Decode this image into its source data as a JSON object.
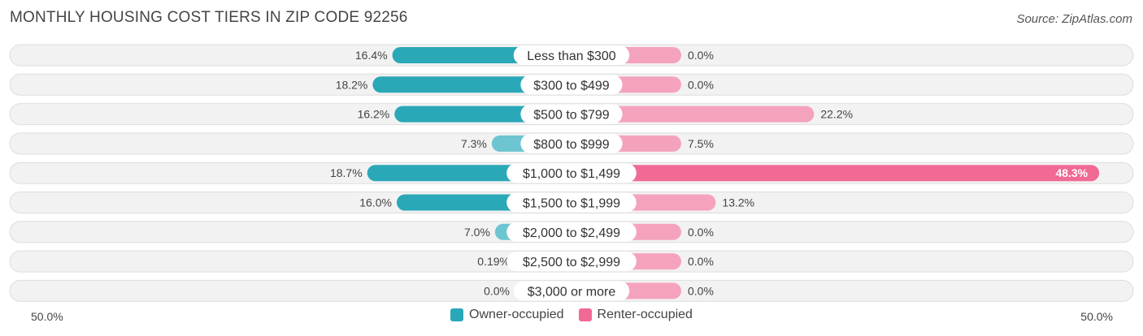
{
  "title": "MONTHLY HOUSING COST TIERS IN ZIP CODE 92256",
  "source": "Source: ZipAtlas.com",
  "colors": {
    "owner": "#2BA8B8",
    "owner_light": "#6CC5D0",
    "renter": "#F06A94",
    "renter_light": "#F5A3BD"
  },
  "chart_data": {
    "type": "bar",
    "orientation": "horizontal-diverging",
    "categories": [
      "Less than $300",
      "$300 to $499",
      "$500 to $799",
      "$800 to $999",
      "$1,000 to $1,499",
      "$1,500 to $1,999",
      "$2,000 to $2,499",
      "$2,500 to $2,999",
      "$3,000 or more"
    ],
    "series": [
      {
        "name": "Owner-occupied",
        "values": [
          16.4,
          18.2,
          16.2,
          7.3,
          18.7,
          16.0,
          7.0,
          0.19,
          0.0
        ],
        "labels": [
          "16.4%",
          "18.2%",
          "16.2%",
          "7.3%",
          "18.7%",
          "16.0%",
          "7.0%",
          "0.19%",
          "0.0%"
        ]
      },
      {
        "name": "Renter-occupied",
        "values": [
          0.0,
          0.0,
          22.2,
          7.5,
          48.3,
          13.2,
          0.0,
          0.0,
          0.0
        ],
        "labels": [
          "0.0%",
          "0.0%",
          "22.2%",
          "7.5%",
          "48.3%",
          "13.2%",
          "0.0%",
          "0.0%",
          "0.0%"
        ]
      }
    ],
    "xlim": [
      -50,
      50
    ],
    "axis_labels": {
      "left": "50.0%",
      "right": "50.0%"
    },
    "legend_position": "bottom-center"
  }
}
